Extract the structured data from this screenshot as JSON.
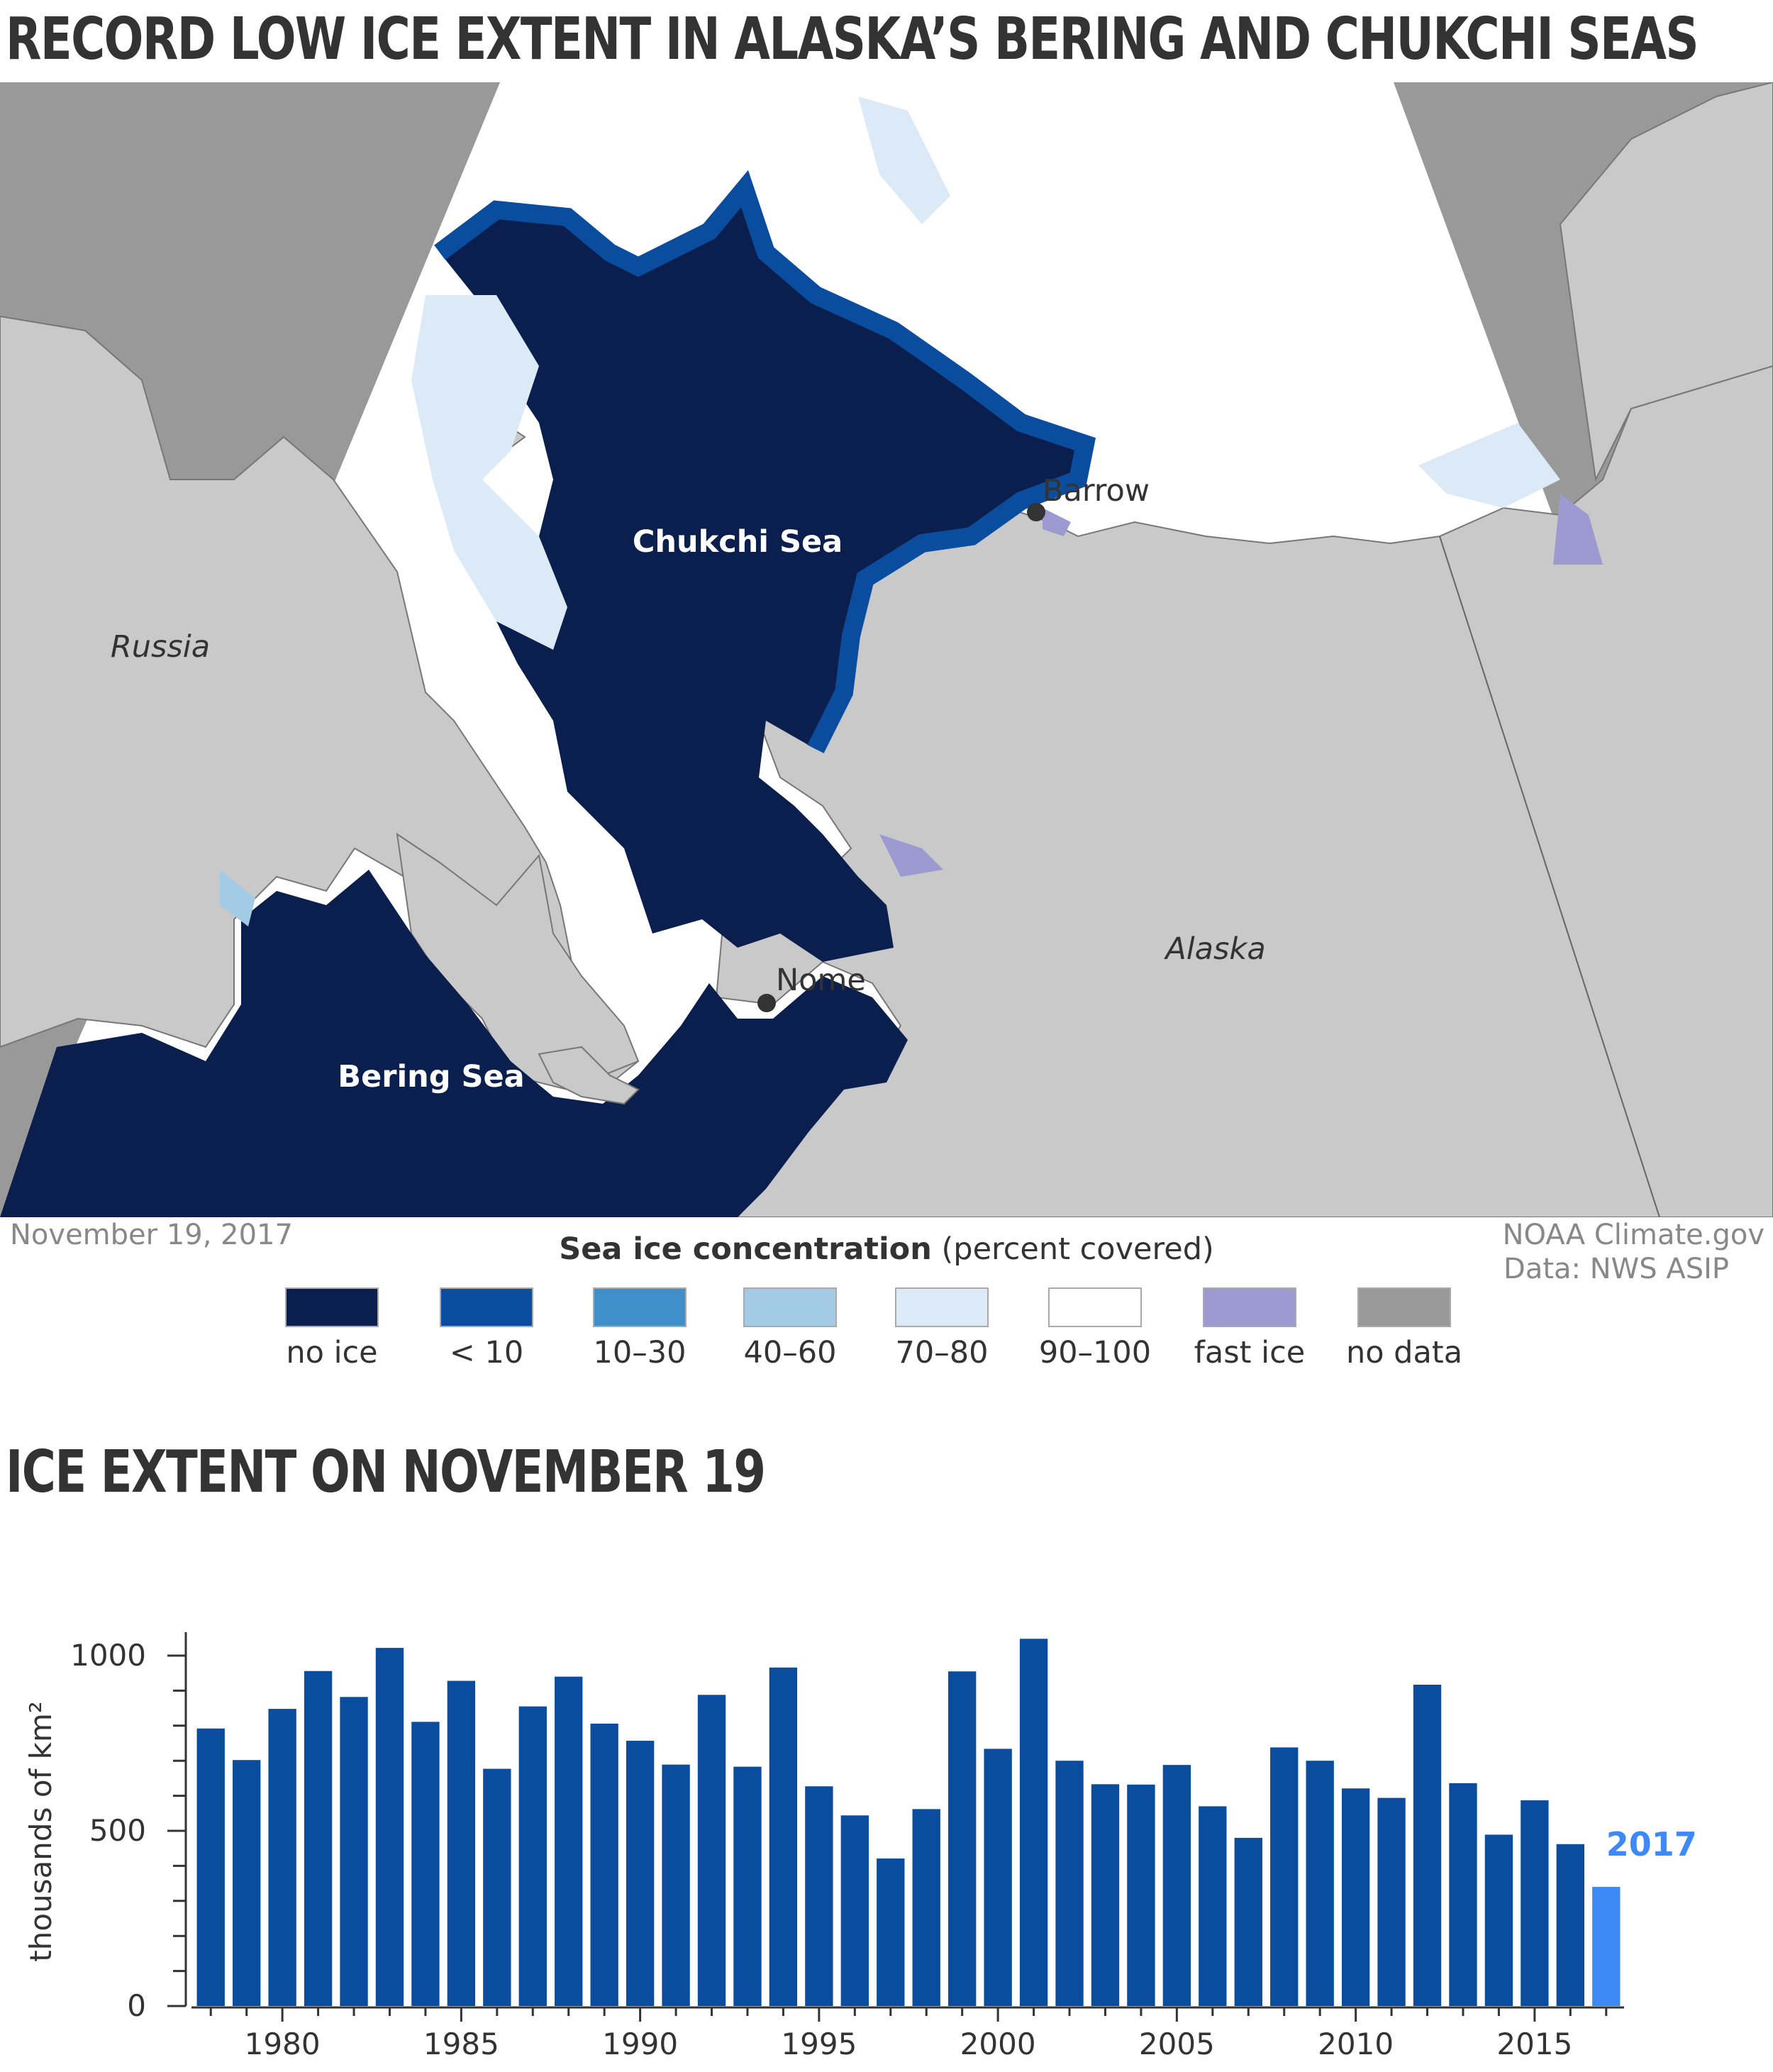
{
  "title": "RECORD LOW ICE EXTENT IN ALASKA’S BERING AND CHUKCHI SEAS",
  "map": {
    "date": "November 19, 2017",
    "labels": {
      "chukchi": "Chukchi Sea",
      "bering": "Bering Sea",
      "russia": "Russia",
      "alaska": "Alaska",
      "barrow": "Barrow",
      "nome": "Nome"
    },
    "credit_line1": "NOAA Climate.gov",
    "credit_line2": "Data: NWS ASIP",
    "colors": {
      "no_ice": "#0a1f4e",
      "lt10": "#0a4d9e",
      "c10_30": "#3f8fca",
      "c40_60": "#a3cbe6",
      "c70_80": "#dceaf7",
      "c90_100": "#ffffff",
      "fast_ice": "#9c9ad0",
      "no_data": "#999999",
      "land": "#c9c9c9",
      "land_dark": "#9a9a9a"
    }
  },
  "legend": {
    "title_bold": "Sea ice concentration",
    "title_rest": " (percent covered)",
    "items": [
      {
        "label": "no ice",
        "color": "#0a1f4e"
      },
      {
        "label": "< 10",
        "color": "#0a4d9e"
      },
      {
        "label": "10–30",
        "color": "#3f8fca"
      },
      {
        "label": "40–60",
        "color": "#a3cbe6"
      },
      {
        "label": "70–80",
        "color": "#dceaf7"
      },
      {
        "label": "90–100",
        "color": "#ffffff"
      },
      {
        "label": "fast ice",
        "color": "#9c9ad0"
      },
      {
        "label": "no data",
        "color": "#999999"
      }
    ]
  },
  "chart_title": "ICE EXTENT ON NOVEMBER 19",
  "chart_data": {
    "type": "bar",
    "title": "ICE EXTENT ON NOVEMBER 19",
    "xlabel": "",
    "ylabel": "thousands of km²",
    "ylim": [
      0,
      1100
    ],
    "yticks": [
      0,
      500,
      1000
    ],
    "xticks": [
      1980,
      1985,
      1990,
      1995,
      2000,
      2005,
      2010,
      2015
    ],
    "x": [
      1978,
      1979,
      1980,
      1981,
      1982,
      1983,
      1984,
      1985,
      1986,
      1987,
      1988,
      1989,
      1990,
      1991,
      1992,
      1993,
      1994,
      1995,
      1996,
      1997,
      1998,
      1999,
      2000,
      2001,
      2002,
      2003,
      2004,
      2005,
      2006,
      2007,
      2008,
      2009,
      2010,
      2011,
      2012,
      2013,
      2014,
      2015,
      2016,
      2017
    ],
    "values": [
      792,
      702,
      848,
      956,
      882,
      1022,
      811,
      928,
      677,
      855,
      940,
      806,
      757,
      689,
      888,
      683,
      966,
      627,
      544,
      421,
      562,
      955,
      734,
      1048,
      700,
      633,
      632,
      688,
      570,
      480,
      738,
      700,
      621,
      594,
      917,
      636,
      489,
      587,
      462,
      340
    ],
    "bar_color": "#0a4d9e",
    "highlight_color": "#3d8af7",
    "highlight_label": "2017",
    "grid": false
  }
}
